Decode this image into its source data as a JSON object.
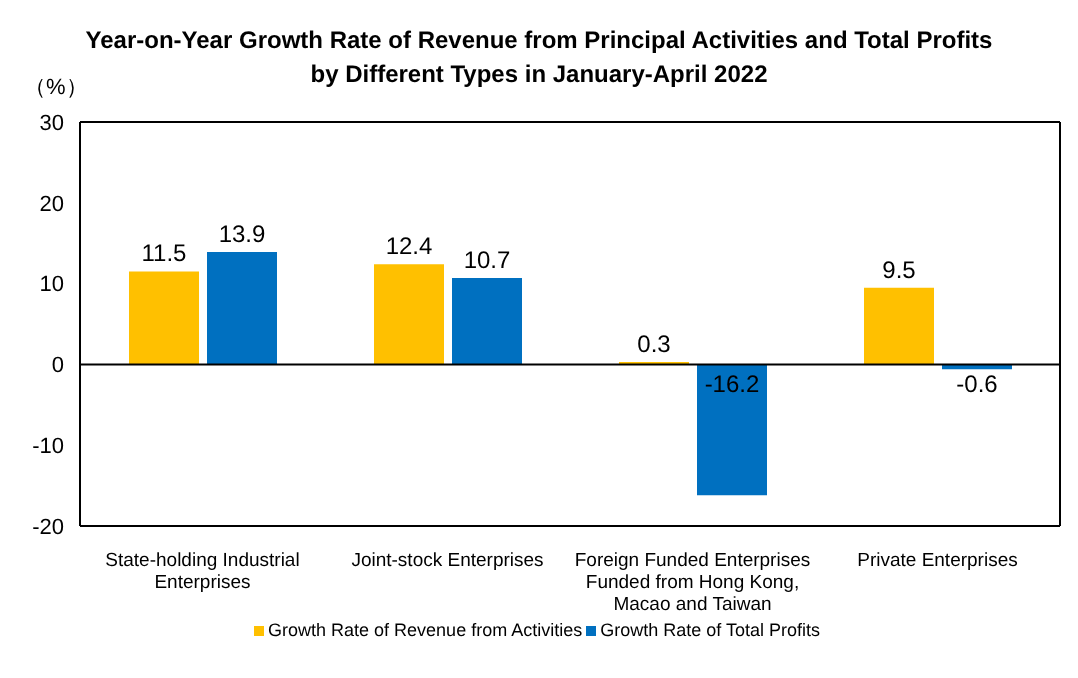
{
  "chart_data": {
    "type": "bar",
    "title": "Year-on-Year Growth Rate of Revenue from Principal Activities and Total Profits by Different Types in January-April 2022",
    "ylabel": "（%）",
    "categories": [
      "State-holding Industrial Enterprises",
      "Joint-stock Enterprises",
      "Foreign Funded Enterprises Funded from Hong Kong, Macao and Taiwan",
      "Private Enterprises"
    ],
    "series": [
      {
        "name": "Growth Rate of Revenue from Activities",
        "color": "#ffc000",
        "values": [
          11.5,
          12.4,
          0.3,
          9.5
        ]
      },
      {
        "name": "Growth Rate of Total Profits",
        "color": "#0070c0",
        "values": [
          13.9,
          10.7,
          -16.2,
          -0.6
        ]
      }
    ],
    "ylim": [
      -20,
      30
    ],
    "yticks": [
      -20,
      -10,
      0,
      10,
      20,
      30
    ],
    "data_labels": true,
    "legend": "bottom"
  }
}
